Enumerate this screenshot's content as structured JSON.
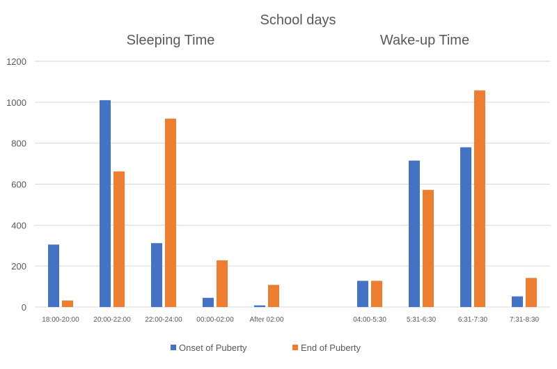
{
  "chart_data": {
    "type": "bar",
    "title": "School days",
    "groups": [
      {
        "label": "Sleeping Time",
        "categories": [
          "18:00-20:00",
          "20:00-22:00",
          "22:00-24:00",
          "00:00-02:00",
          "After 02:00"
        ]
      },
      {
        "label": "Wake-up Time",
        "categories": [
          "04:00-5:30",
          "5:31-6:30",
          "6:31-7:30",
          "7:31-8:30"
        ]
      }
    ],
    "categories": [
      "18:00-20:00",
      "20:00-22:00",
      "22:00-24:00",
      "00:00-02:00",
      "After 02:00",
      "",
      "04:00-5:30",
      "5:31-6:30",
      "6:31-7:30",
      "7:31-8:30"
    ],
    "series": [
      {
        "name": "Onset of Puberty",
        "color": "#4472C4",
        "values": [
          305,
          1010,
          312,
          45,
          8,
          null,
          128,
          715,
          780,
          52
        ]
      },
      {
        "name": "End of Puberty",
        "color": "#ED7D31",
        "values": [
          32,
          662,
          920,
          228,
          108,
          null,
          128,
          572,
          1058,
          142
        ]
      }
    ],
    "ylim": [
      0,
      1200
    ],
    "yticks": [
      0,
      200,
      400,
      600,
      800,
      1000,
      1200
    ],
    "grid": true,
    "legend": "bottom"
  }
}
